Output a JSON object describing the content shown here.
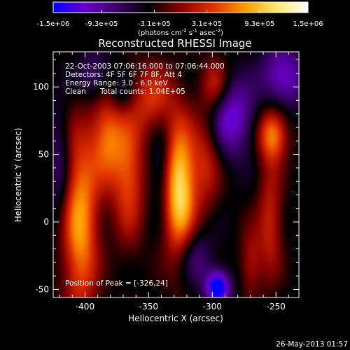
{
  "colorbar": {
    "tick_labels": [
      "-1.5e+06",
      "-9.3e+05",
      "-3.1e+05",
      "3.1e+05",
      "9.3e+05",
      "1.5e+06"
    ],
    "tick_values": [
      -1500000,
      -930000,
      -310000,
      310000,
      930000,
      1500000
    ],
    "range": [
      -1500000,
      1500000
    ],
    "units_html": "(photons cm<tspan baseline-shift=\"super\" font-size=\"7\">-2</tspan> s<tspan baseline-shift=\"super\" font-size=\"7\">-1</tspan> asec<tspan baseline-shift=\"super\" font-size=\"7\">-2</tspan>)",
    "units": "(photons cm-2 s-1 asec-2)",
    "colors": [
      "#0000ff",
      "#6a00c8",
      "#3a0066",
      "#000000",
      "#8a0000",
      "#e03000",
      "#ff9a00",
      "#ffe86a",
      "#ffffff"
    ]
  },
  "chart_data": {
    "type": "heatmap",
    "title": "Reconstructed RHESSI Image",
    "xlabel": "Heliocentric X (arcsec)",
    "ylabel": "Heliocentric Y (arcsec)",
    "xlim": [
      -425,
      -232
    ],
    "ylim": [
      -56,
      126
    ],
    "x_ticks": [
      -400,
      -350,
      -300,
      -250
    ],
    "y_ticks": [
      -50,
      0,
      50,
      100
    ],
    "annotations": [
      "22-Oct-2003 07:06:16.000 to 07:06:44.000",
      "Detectors: 4F 5F 6F 7F 8F, Att 4",
      "Energy Range: 3.0 - 6.0 keV",
      "Clean      Total counts: 1.04E+05"
    ],
    "peak_label": "Position of Peak = [-326,24]",
    "peak_position": [
      -326,
      24
    ],
    "sources": [
      {
        "x": -404,
        "y": 0,
        "sx": 10,
        "sy": 48,
        "amp": 1150000
      },
      {
        "x": -383,
        "y": 62,
        "sx": 9,
        "sy": 24,
        "amp": 880000
      },
      {
        "x": -366,
        "y": 35,
        "sx": 9,
        "sy": 34,
        "amp": 830000
      },
      {
        "x": -347,
        "y": 92,
        "sx": 11,
        "sy": 18,
        "amp": 680000
      },
      {
        "x": -326,
        "y": 24,
        "sx": 9,
        "sy": 36,
        "amp": 1500000
      },
      {
        "x": -298,
        "y": 102,
        "sx": 8,
        "sy": 14,
        "amp": 620000
      },
      {
        "x": -305,
        "y": 45,
        "sx": 8,
        "sy": 26,
        "amp": 560000
      },
      {
        "x": -253,
        "y": 65,
        "sx": 8,
        "sy": 14,
        "amp": 1050000
      },
      {
        "x": -255,
        "y": 0,
        "sx": 7,
        "sy": 30,
        "amp": 620000
      },
      {
        "x": -270,
        "y": -30,
        "sx": 6,
        "sy": 18,
        "amp": 480000
      },
      {
        "x": -296,
        "y": -48,
        "sx": 7,
        "sy": 9,
        "amp": -1250000
      },
      {
        "x": -285,
        "y": 78,
        "sx": 12,
        "sy": 20,
        "amp": -820000
      },
      {
        "x": -245,
        "y": 108,
        "sx": 12,
        "sy": 16,
        "amp": -780000
      },
      {
        "x": -340,
        "y": 40,
        "sx": 6,
        "sy": 24,
        "amp": -420000
      },
      {
        "x": -315,
        "y": -25,
        "sx": 10,
        "sy": 15,
        "amp": -520000
      },
      {
        "x": -394,
        "y": 108,
        "sx": 9,
        "sy": 14,
        "amp": -480000
      },
      {
        "x": -372,
        "y": 95,
        "sx": 7,
        "sy": 10,
        "amp": -350000
      },
      {
        "x": -420,
        "y": 40,
        "sx": 6,
        "sy": 30,
        "amp": -450000
      }
    ]
  },
  "footer": {
    "timestamp": "26-May-2013 01:57"
  }
}
